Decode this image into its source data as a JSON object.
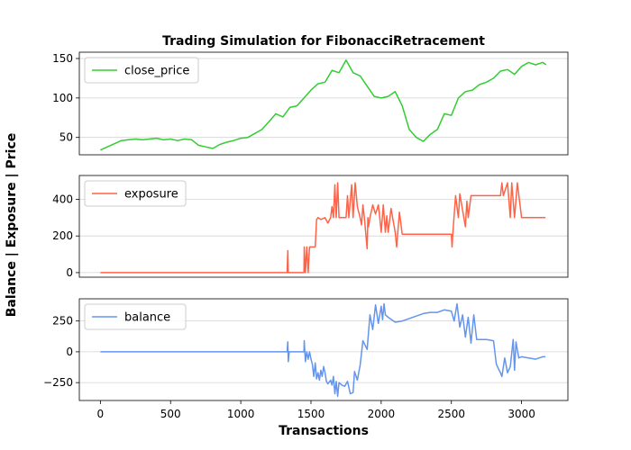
{
  "figure": {
    "title": "Trading Simulation for FibonacciRetracement",
    "xlabel": "Transactions",
    "ylabel": "Balance | Exposure | Price"
  },
  "chart_data": [
    {
      "type": "line",
      "series": [
        {
          "name": "close_price",
          "color": "#32cd32"
        }
      ],
      "xlim": [
        -150,
        3330
      ],
      "ylim": [
        28,
        158
      ],
      "yticks": [
        50,
        100,
        150
      ],
      "grid": "horizontal",
      "legend": "top-left",
      "x": [
        0,
        50,
        100,
        150,
        200,
        250,
        300,
        350,
        400,
        450,
        500,
        550,
        600,
        650,
        700,
        750,
        800,
        850,
        900,
        950,
        1000,
        1050,
        1100,
        1150,
        1200,
        1250,
        1300,
        1350,
        1400,
        1450,
        1500,
        1550,
        1600,
        1650,
        1700,
        1750,
        1800,
        1850,
        1900,
        1950,
        2000,
        2050,
        2100,
        2150,
        2200,
        2250,
        2300,
        2350,
        2400,
        2450,
        2500,
        2550,
        2600,
        2650,
        2700,
        2750,
        2800,
        2850,
        2900,
        2950,
        3000,
        3050,
        3100,
        3150,
        3175
      ],
      "values": [
        34,
        38,
        42,
        46,
        47,
        48,
        47,
        48,
        49,
        47,
        48,
        46,
        48,
        47,
        40,
        38,
        36,
        41,
        44,
        46,
        49,
        50,
        55,
        60,
        70,
        80,
        76,
        88,
        90,
        100,
        110,
        118,
        120,
        135,
        132,
        148,
        132,
        128,
        115,
        102,
        100,
        102,
        108,
        90,
        60,
        50,
        45,
        54,
        60,
        80,
        78,
        100,
        108,
        110,
        117,
        120,
        125,
        134,
        136,
        130,
        140,
        145,
        142,
        145,
        142
      ]
    },
    {
      "type": "line",
      "series": [
        {
          "name": "exposure",
          "color": "#ff6347"
        }
      ],
      "xlim": [
        -150,
        3330
      ],
      "ylim": [
        -25,
        530
      ],
      "yticks": [
        0,
        200,
        400
      ],
      "grid": "horizontal",
      "legend": "top-left",
      "x": [
        0,
        1330,
        1335,
        1338,
        1345,
        1350,
        1450,
        1452,
        1460,
        1470,
        1480,
        1490,
        1500,
        1530,
        1540,
        1550,
        1570,
        1600,
        1620,
        1640,
        1650,
        1660,
        1670,
        1680,
        1690,
        1700,
        1730,
        1750,
        1760,
        1770,
        1790,
        1800,
        1815,
        1830,
        1850,
        1860,
        1870,
        1880,
        1900,
        1905,
        1910,
        1920,
        1940,
        1960,
        1980,
        1990,
        2000,
        2015,
        2030,
        2040,
        2050,
        2070,
        2100,
        2110,
        2130,
        2150,
        2160,
        2180,
        2200,
        2250,
        2300,
        2400,
        2450,
        2500,
        2505,
        2510,
        2530,
        2550,
        2560,
        2600,
        2610,
        2620,
        2640,
        2650,
        2700,
        2750,
        2800,
        2850,
        2860,
        2870,
        2900,
        2920,
        2930,
        2950,
        2970,
        3000,
        3170
      ],
      "values": [
        0,
        0,
        120,
        0,
        0,
        0,
        0,
        140,
        0,
        140,
        0,
        140,
        140,
        140,
        290,
        300,
        290,
        300,
        270,
        300,
        360,
        300,
        480,
        300,
        490,
        300,
        300,
        300,
        420,
        300,
        480,
        300,
        490,
        360,
        300,
        260,
        370,
        300,
        130,
        300,
        250,
        300,
        370,
        320,
        370,
        300,
        220,
        370,
        220,
        310,
        220,
        350,
        220,
        140,
        330,
        210,
        210,
        210,
        210,
        210,
        210,
        210,
        210,
        210,
        140,
        210,
        420,
        300,
        430,
        250,
        390,
        300,
        420,
        420,
        420,
        420,
        420,
        420,
        490,
        420,
        490,
        300,
        490,
        300,
        490,
        300,
        300
      ]
    },
    {
      "type": "line",
      "series": [
        {
          "name": "balance",
          "color": "#6495ed"
        }
      ],
      "xlim": [
        -150,
        3330
      ],
      "ylim": [
        -395,
        430
      ],
      "yticks": [
        -250,
        0,
        250
      ],
      "grid": "horizontal",
      "legend": "top-left",
      "x": [
        0,
        1300,
        1330,
        1335,
        1338,
        1345,
        1450,
        1452,
        1460,
        1470,
        1480,
        1490,
        1500,
        1510,
        1520,
        1530,
        1540,
        1550,
        1560,
        1570,
        1580,
        1590,
        1600,
        1610,
        1620,
        1640,
        1650,
        1660,
        1670,
        1680,
        1690,
        1700,
        1720,
        1740,
        1760,
        1780,
        1800,
        1810,
        1830,
        1850,
        1870,
        1900,
        1920,
        1940,
        1960,
        1980,
        2000,
        2010,
        2020,
        2030,
        2050,
        2100,
        2150,
        2200,
        2250,
        2300,
        2350,
        2400,
        2450,
        2500,
        2520,
        2540,
        2560,
        2580,
        2600,
        2620,
        2640,
        2660,
        2680,
        2700,
        2750,
        2800,
        2820,
        2840,
        2850,
        2860,
        2880,
        2900,
        2920,
        2940,
        2950,
        2960,
        2980,
        3000,
        3050,
        3100,
        3150,
        3170
      ],
      "values": [
        0,
        0,
        0,
        80,
        -80,
        0,
        0,
        90,
        -80,
        0,
        -60,
        0,
        -60,
        -100,
        -200,
        -90,
        -220,
        -170,
        -230,
        -150,
        -200,
        -120,
        -170,
        -240,
        -260,
        -230,
        -270,
        -200,
        -340,
        -240,
        -360,
        -250,
        -270,
        -280,
        -240,
        -340,
        -330,
        -160,
        -230,
        -110,
        90,
        20,
        300,
        180,
        380,
        230,
        370,
        260,
        390,
        300,
        280,
        240,
        250,
        270,
        290,
        310,
        320,
        320,
        340,
        330,
        250,
        390,
        200,
        300,
        120,
        280,
        70,
        300,
        100,
        100,
        100,
        90,
        -100,
        -150,
        -170,
        -200,
        -50,
        -170,
        -120,
        100,
        -150,
        80,
        -50,
        -40,
        -50,
        -60,
        -40,
        -40
      ]
    }
  ]
}
